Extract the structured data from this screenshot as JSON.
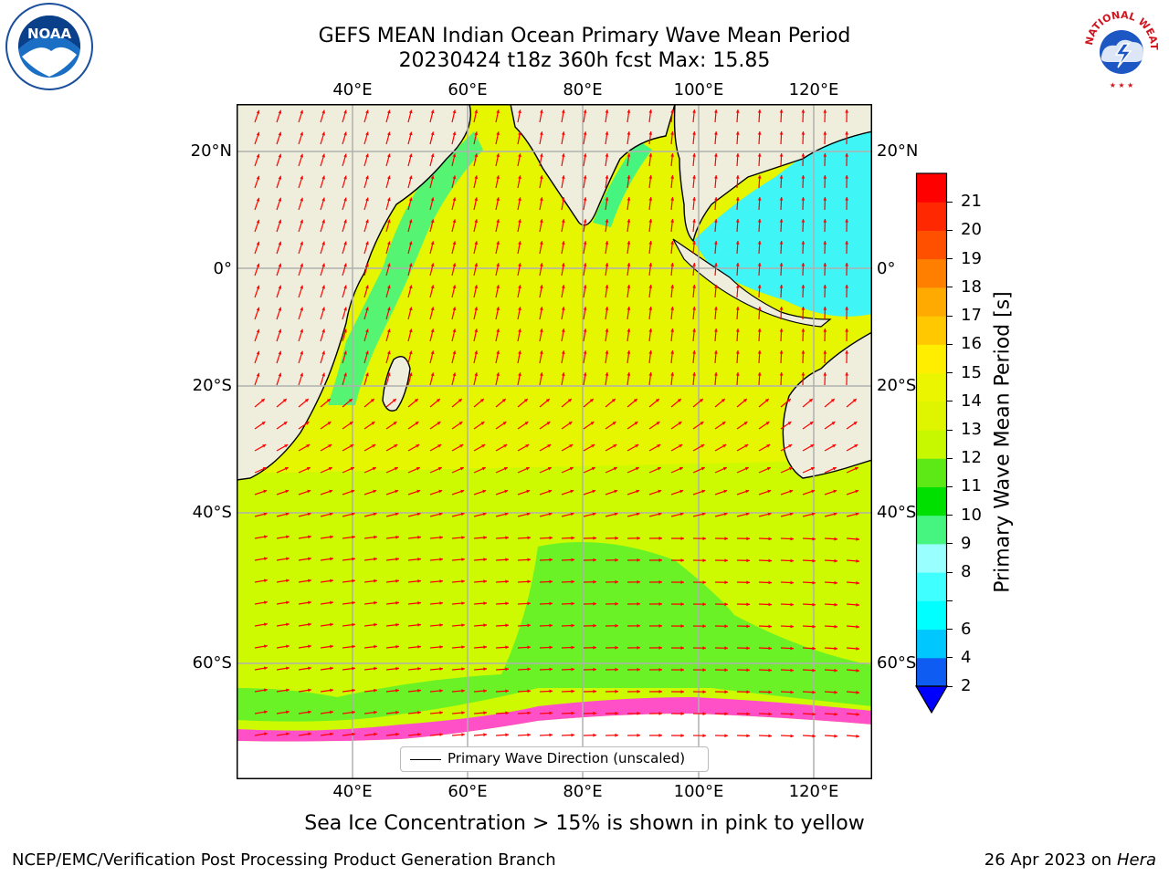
{
  "title": {
    "line1": "GEFS MEAN Indian Ocean Primary Wave Mean Period",
    "line2": "20230424 t18z 360h fcst   Max: 15.85"
  },
  "logos": {
    "left": {
      "icon": "noaa-logo",
      "text": "NOAA"
    },
    "right": {
      "icon": "nws-logo",
      "text": "NATIONAL WEATHER SERVICE"
    }
  },
  "map": {
    "lon_ticks_top": [
      "40°E",
      "60°E",
      "80°E",
      "100°E",
      "120°E"
    ],
    "lon_ticks_bottom": [
      "40°E",
      "60°E",
      "80°E",
      "100°E",
      "120°E"
    ],
    "lat_ticks_left": [
      "20°N",
      "0°",
      "20°S",
      "40°S",
      "60°S"
    ],
    "lat_ticks_right": [
      "20°N",
      "0°",
      "20°S",
      "40°S",
      "60°S"
    ],
    "legend_label": "Primary Wave Direction (unscaled)",
    "colors": {
      "land": "#efeedd",
      "ocean_main": "#e6f500",
      "ocean_south": "#cdfa00",
      "swell_green": "#6af226",
      "shelf_cyan": "#3ff5f5",
      "ice_white": "#ffffff",
      "arrow": "#ff0000"
    }
  },
  "colorbar": {
    "label": "Primary Wave Mean Period [s]",
    "ticks": [
      "2",
      "4",
      "6",
      "7",
      "8",
      "9",
      "10",
      "11",
      "12",
      "13",
      "14",
      "15",
      "16",
      "17",
      "18",
      "19",
      "20",
      "21"
    ],
    "tick_labels_shown": [
      "2",
      "4",
      "6",
      "8",
      "9",
      "10",
      "11",
      "12",
      "13",
      "14",
      "15",
      "16",
      "17",
      "18",
      "19",
      "20",
      "21"
    ],
    "colors": [
      "#0f5cf2",
      "#00c8ff",
      "#00ffff",
      "#40ffff",
      "#99ffff",
      "#45f580",
      "#00e000",
      "#5de915",
      "#c8f800",
      "#dff500",
      "#ebf500",
      "#ffee00",
      "#ffc800",
      "#ffaa00",
      "#ff8000",
      "#ff5000",
      "#ff2800",
      "#ff0000"
    ],
    "extend_color": "#0000ff"
  },
  "caption": "Sea Ice Concentration > 15% is shown in pink to yellow",
  "footer": {
    "left": "NCEP/EMC/Verification Post Processing Product Generation Branch",
    "right_date": "26 Apr 2023 on ",
    "right_host": "Hera"
  }
}
